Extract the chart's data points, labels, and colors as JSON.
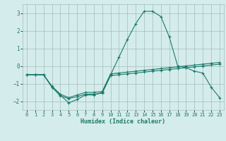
{
  "xlabel": "Humidex (Indice chaleur)",
  "x": [
    0,
    1,
    2,
    3,
    4,
    5,
    6,
    7,
    8,
    9,
    10,
    11,
    12,
    13,
    14,
    15,
    16,
    17,
    18,
    19,
    20,
    21,
    22,
    23
  ],
  "line_main": [
    -0.5,
    -0.5,
    -0.5,
    -1.2,
    -1.65,
    -2.1,
    -1.9,
    -1.65,
    -1.65,
    -1.5,
    -0.5,
    0.5,
    1.5,
    2.4,
    3.1,
    3.1,
    2.8,
    1.65,
    0.0,
    -0.1,
    -0.3,
    -0.4,
    -1.2,
    -1.8
  ],
  "line_upper": [
    -0.5,
    -0.5,
    -0.5,
    -1.15,
    -1.6,
    -1.8,
    -1.65,
    -1.5,
    -1.5,
    -1.45,
    -0.45,
    -0.4,
    -0.35,
    -0.3,
    -0.25,
    -0.2,
    -0.15,
    -0.1,
    -0.05,
    0.0,
    0.05,
    0.1,
    0.15,
    0.2
  ],
  "line_lower": [
    -0.5,
    -0.5,
    -0.5,
    -1.2,
    -1.7,
    -1.85,
    -1.75,
    -1.6,
    -1.6,
    -1.55,
    -0.55,
    -0.5,
    -0.45,
    -0.4,
    -0.35,
    -0.3,
    -0.25,
    -0.2,
    -0.15,
    -0.1,
    -0.05,
    0.0,
    0.05,
    0.1
  ],
  "bg_color": "#d5ecec",
  "grid_color": "#a0bcbc",
  "line_color": "#1a7a6a",
  "ylim": [
    -2.5,
    3.5
  ],
  "xlim": [
    -0.5,
    23.5
  ],
  "yticks": [
    -2,
    -1,
    0,
    1,
    2,
    3
  ],
  "xticks": [
    0,
    1,
    2,
    3,
    4,
    5,
    6,
    7,
    8,
    9,
    10,
    11,
    12,
    13,
    14,
    15,
    16,
    17,
    18,
    19,
    20,
    21,
    22,
    23
  ]
}
